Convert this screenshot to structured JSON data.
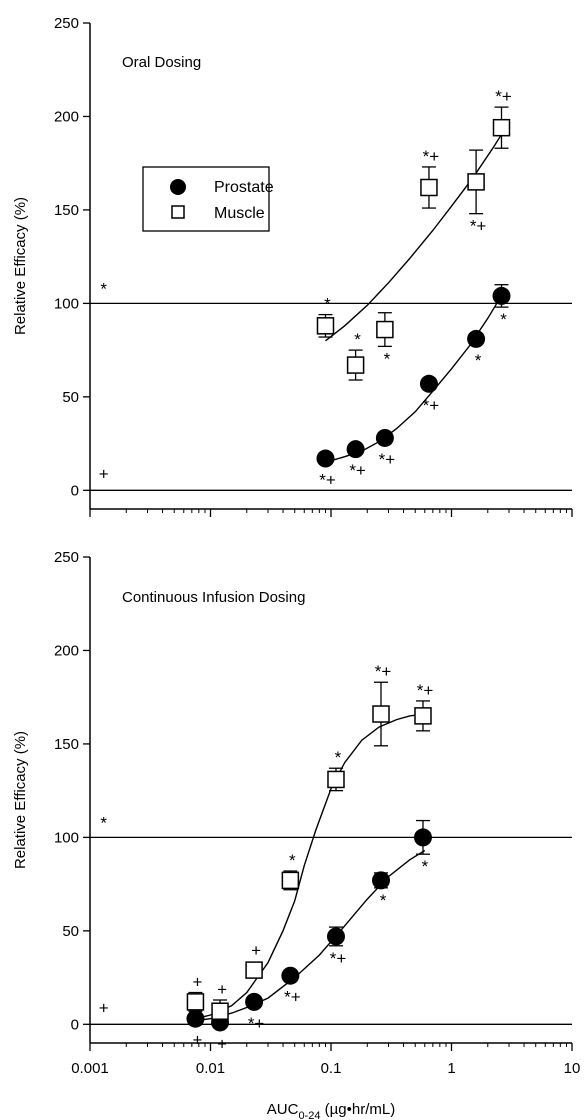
{
  "chart_data": [
    {
      "type": "scatter",
      "title": "Oral Dosing",
      "xlabel": "",
      "ylabel": "Relative Efficacy (%)",
      "xscale": "log",
      "xlim": [
        0.001,
        10
      ],
      "ylim": [
        -10,
        250
      ],
      "yticks": [
        0,
        50,
        100,
        150,
        200,
        250
      ],
      "ytick_labels": [
        "0",
        "50",
        "100",
        "150",
        "200",
        "250"
      ],
      "reference_lines": [
        0,
        100
      ],
      "legend": {
        "placement": "upper-left",
        "entries": [
          "Prostate",
          "Muscle"
        ]
      },
      "series": [
        {
          "name": "Prostate",
          "marker": "filled-circle",
          "x": [
            0.09,
            0.16,
            0.28,
            0.65,
            1.6,
            2.6
          ],
          "y": [
            17,
            22,
            28,
            57,
            81,
            104
          ],
          "error": [
            0,
            0,
            0,
            0,
            0,
            6
          ],
          "labels": [
            "*+",
            "*+",
            "*+",
            "*+",
            "*",
            "*"
          ],
          "label_sides": [
            "below",
            "below",
            "below",
            "below",
            "below",
            "below"
          ],
          "fit": {
            "x": [
              0.09,
              0.13,
              0.18,
              0.25,
              0.35,
              0.5,
              0.7,
              1.0,
              1.4,
              2.0,
              2.7
            ],
            "y": [
              15,
              18,
              21,
              26,
              33,
              42,
              53,
              65,
              77,
              92,
              106
            ]
          }
        },
        {
          "name": "Muscle",
          "marker": "open-square",
          "x": [
            0.09,
            0.16,
            0.28,
            0.65,
            1.6,
            2.6
          ],
          "y": [
            88,
            67,
            86,
            162,
            165,
            194
          ],
          "error": [
            6,
            8,
            9,
            11,
            17,
            11
          ],
          "labels": [
            "*",
            "*",
            "*",
            "*+",
            "*+",
            "*+"
          ],
          "label_sides": [
            "above",
            "above",
            "below",
            "above",
            "below",
            "above"
          ],
          "fit": {
            "x": [
              0.09,
              0.13,
              0.2,
              0.3,
              0.45,
              0.7,
              1.0,
              1.5,
              2.2,
              2.7
            ],
            "y": [
              80,
              88,
              99,
              111,
              124,
              139,
              152,
              167,
              183,
              192
            ]
          }
        }
      ],
      "annotations": [
        {
          "text": "*",
          "x": 0.0013,
          "y": 108
        },
        {
          "text": "+",
          "x": 0.0013,
          "y": 9
        }
      ]
    },
    {
      "type": "scatter",
      "title": "Continuous Infusion Dosing",
      "xlabel": "AUC0-24 (µg•hr/mL)",
      "xlabel_main": "AUC",
      "xlabel_sub": "0-24",
      "xlabel_rest": " (µg•hr/mL)",
      "ylabel": "Relative Efficacy (%)",
      "xscale": "log",
      "xlim": [
        0.001,
        10
      ],
      "ylim": [
        -10,
        250
      ],
      "xticks": [
        0.001,
        0.01,
        0.1,
        1,
        10
      ],
      "xtick_labels": [
        "0.001",
        "0.01",
        "0.1",
        "1",
        "10"
      ],
      "yticks": [
        0,
        50,
        100,
        150,
        200,
        250
      ],
      "ytick_labels": [
        "0",
        "50",
        "100",
        "150",
        "200",
        "250"
      ],
      "reference_lines": [
        0,
        100
      ],
      "series": [
        {
          "name": "Prostate",
          "marker": "filled-circle",
          "x": [
            0.0075,
            0.012,
            0.023,
            0.046,
            0.11,
            0.26,
            0.58
          ],
          "y": [
            3,
            1,
            12,
            26,
            47,
            77,
            100
          ],
          "error": [
            0,
            0,
            0,
            0,
            5,
            4,
            9
          ],
          "labels": [
            "+",
            "+",
            "*+",
            "*+",
            "*+",
            "*",
            "*"
          ],
          "label_sides": [
            "below",
            "below",
            "below",
            "below",
            "below",
            "below",
            "below"
          ],
          "fit": {
            "x": [
              0.0075,
              0.01,
              0.015,
              0.02,
              0.03,
              0.05,
              0.08,
              0.12,
              0.2,
              0.3,
              0.45,
              0.6
            ],
            "y": [
              2,
              3,
              6,
              9,
              14,
              25,
              37,
              50,
              67,
              79,
              88,
              93
            ]
          }
        },
        {
          "name": "Muscle",
          "marker": "open-square",
          "x": [
            0.0075,
            0.012,
            0.023,
            0.046,
            0.11,
            0.26,
            0.58
          ],
          "y": [
            12,
            7,
            29,
            77,
            131,
            166,
            165
          ],
          "error": [
            5,
            6,
            0,
            5,
            6,
            17,
            8
          ],
          "labels": [
            "+",
            "+",
            "+",
            "*",
            "*",
            "*+",
            "*+"
          ],
          "label_sides": [
            "above",
            "above",
            "above",
            "above",
            "above",
            "above",
            "above"
          ],
          "fit": {
            "x": [
              0.0075,
              0.01,
              0.015,
              0.02,
              0.03,
              0.04,
              0.05,
              0.06,
              0.075,
              0.1,
              0.13,
              0.18,
              0.25,
              0.35,
              0.45,
              0.6
            ],
            "y": [
              3,
              5,
              10,
              17,
              33,
              50,
              66,
              85,
              104,
              126,
              140,
              152,
              159,
              163,
              165,
              166
            ]
          }
        }
      ],
      "annotations": [
        {
          "text": "*",
          "x": 0.0013,
          "y": 108
        },
        {
          "text": "+",
          "x": 0.0013,
          "y": 9
        }
      ]
    }
  ]
}
